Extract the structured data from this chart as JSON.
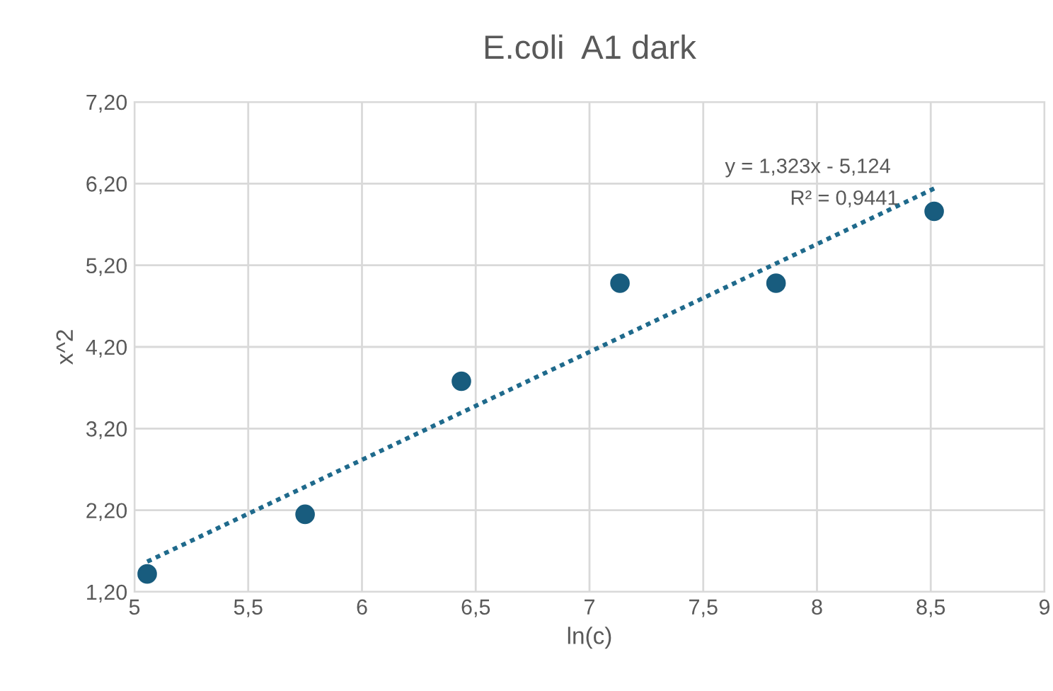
{
  "chart_data": {
    "type": "scatter",
    "title": "E.coli  A1 dark",
    "xlabel": "ln(c)",
    "ylabel": "x^2",
    "x": [
      5.056,
      5.75,
      6.437,
      7.134,
      7.82,
      8.515
    ],
    "series": [
      {
        "color": "#185c7e",
        "marker": "circle",
        "values": [
          1.42,
          2.15,
          3.78,
          4.98,
          4.98,
          5.86
        ]
      },
      {
        "type": "line",
        "color": "#1f6a8c",
        "line_style": "dotted",
        "marker": "none",
        "x": [
          5.056,
          8.515
        ],
        "values": [
          1.57,
          6.14
        ]
      }
    ],
    "annotations": [
      "y = 1,323x - 5,124",
      "R² = 0,9441"
    ],
    "xlim": [
      5,
      9
    ],
    "xticks": [
      5,
      {
        "value": 5.5,
        "label": "5,5"
      },
      6,
      {
        "value": 6.5,
        "label": "6,5"
      },
      7,
      {
        "value": 7.5,
        "label": "7,5"
      },
      8,
      {
        "value": 8.5,
        "label": "8,5"
      },
      9
    ],
    "ylim": [
      1.2,
      7.2
    ],
    "yticks": [
      {
        "value": 1.2,
        "label": "1,20"
      },
      {
        "value": 2.2,
        "label": "2,20"
      },
      {
        "value": 3.2,
        "label": "3,20"
      },
      {
        "value": 4.2,
        "label": "4,20"
      },
      {
        "value": 5.2,
        "label": "5,20"
      },
      {
        "value": 6.2,
        "label": "6,20"
      },
      {
        "value": 7.2,
        "label": "7,20"
      }
    ],
    "grid": true
  }
}
